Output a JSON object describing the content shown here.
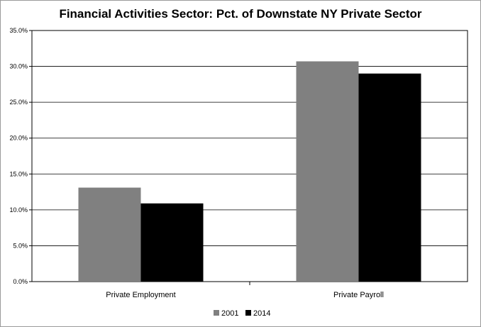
{
  "chart_data": {
    "type": "bar",
    "title": "Financial Activities Sector:  Pct. of Downstate NY Private Sector",
    "categories": [
      "Private Employment",
      "Private Payroll"
    ],
    "series": [
      {
        "name": "2001",
        "values": [
          13.1,
          30.7
        ],
        "color": "#808080"
      },
      {
        "name": "2014",
        "values": [
          10.9,
          29.0
        ],
        "color": "#000000"
      }
    ],
    "y_ticks": [
      "0.0%",
      "5.0%",
      "10.0%",
      "15.0%",
      "20.0%",
      "25.0%",
      "30.0%",
      "35.0%"
    ],
    "ylim": [
      0,
      35
    ],
    "xlabel": "",
    "ylabel": "",
    "grid": true,
    "legend": "bottom"
  }
}
